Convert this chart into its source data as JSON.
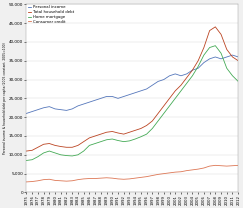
{
  "legend": [
    "Personal income",
    "Total household debt",
    "Home mortgage",
    "Consumer credit"
  ],
  "colors": {
    "personal_income": "#5577bb",
    "total_household_debt": "#bb4422",
    "home_mortgage": "#44aa55",
    "consumer_credit": "#dd7755"
  },
  "years": [
    1975,
    1976,
    1977,
    1978,
    1979,
    1980,
    1981,
    1982,
    1983,
    1984,
    1985,
    1986,
    1987,
    1988,
    1989,
    1990,
    1991,
    1992,
    1993,
    1994,
    1995,
    1996,
    1997,
    1998,
    1999,
    2000,
    2001,
    2002,
    2003,
    2004,
    2005,
    2006,
    2007,
    2008,
    2009,
    2010,
    2011,
    2012
  ],
  "personal_income": [
    21000,
    21500,
    22000,
    22500,
    22800,
    22200,
    22000,
    21800,
    22200,
    23000,
    23500,
    24000,
    24500,
    25000,
    25500,
    25500,
    25000,
    25500,
    26000,
    26500,
    27000,
    27500,
    28500,
    29500,
    30000,
    31000,
    31500,
    31000,
    31500,
    32500,
    33000,
    34500,
    35500,
    36000,
    35500,
    36000,
    36500,
    36000
  ],
  "total_household_debt": [
    11000,
    11200,
    12000,
    12800,
    13000,
    12500,
    12200,
    12000,
    12000,
    12500,
    13500,
    14500,
    15000,
    15500,
    16000,
    16200,
    15800,
    15500,
    16000,
    16500,
    17000,
    17800,
    19000,
    21000,
    23000,
    25000,
    27000,
    28500,
    30500,
    32500,
    35000,
    38500,
    43000,
    44000,
    42000,
    38000,
    36000,
    35000
  ],
  "home_mortgage": [
    8500,
    8700,
    9500,
    10500,
    11000,
    10500,
    10000,
    9800,
    9700,
    10000,
    11000,
    12500,
    13000,
    13500,
    14000,
    14200,
    13800,
    13500,
    13700,
    14200,
    14800,
    15500,
    17000,
    19000,
    21000,
    23000,
    25000,
    27000,
    29000,
    31000,
    33500,
    36500,
    38500,
    39000,
    37000,
    33000,
    31000,
    29500
  ],
  "consumer_credit": [
    2800,
    2900,
    3100,
    3400,
    3500,
    3200,
    3100,
    3000,
    3100,
    3400,
    3600,
    3700,
    3700,
    3800,
    3900,
    3800,
    3600,
    3500,
    3600,
    3800,
    4000,
    4200,
    4500,
    4800,
    5000,
    5200,
    5400,
    5500,
    5800,
    6000,
    6200,
    6500,
    7000,
    7200,
    7100,
    7000,
    7100,
    7200
  ],
  "ylim": [
    0,
    50000
  ],
  "yticks": [
    0,
    5000,
    10000,
    15000,
    20000,
    25000,
    30000,
    35000,
    40000,
    45000,
    50000
  ],
  "ylabel": "Personal income & household debt per capita (2005 constant, 2005=100)",
  "background_color": "#f0f0f0",
  "plot_bg": "#ffffff",
  "linewidth": 0.6
}
